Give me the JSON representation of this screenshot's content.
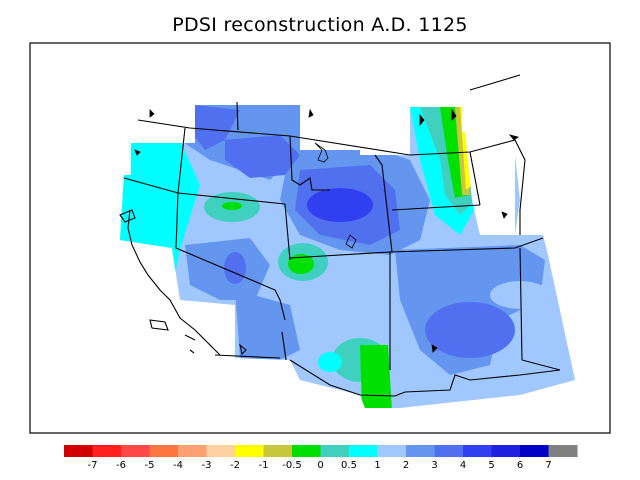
{
  "title": "PDSI reconstruction A.D. 1125",
  "legend": {
    "colors": [
      "#d20000",
      "#ff2020",
      "#ff4848",
      "#ff7640",
      "#ffa070",
      "#ffd0a0",
      "#ffff00",
      "#c8c83c",
      "#00e000",
      "#40d0c0",
      "#00ffff",
      "#a0c8ff",
      "#6496f0",
      "#5070f0",
      "#3040f0",
      "#2020e0",
      "#0000c8",
      "#808080"
    ],
    "labels": [
      "-7",
      "-6",
      "-5",
      "-4",
      "-3",
      "-2",
      "-1",
      "-0.5",
      "0",
      "0.5",
      "1",
      "2",
      "3",
      "4",
      "5",
      "6",
      "7"
    ]
  }
}
